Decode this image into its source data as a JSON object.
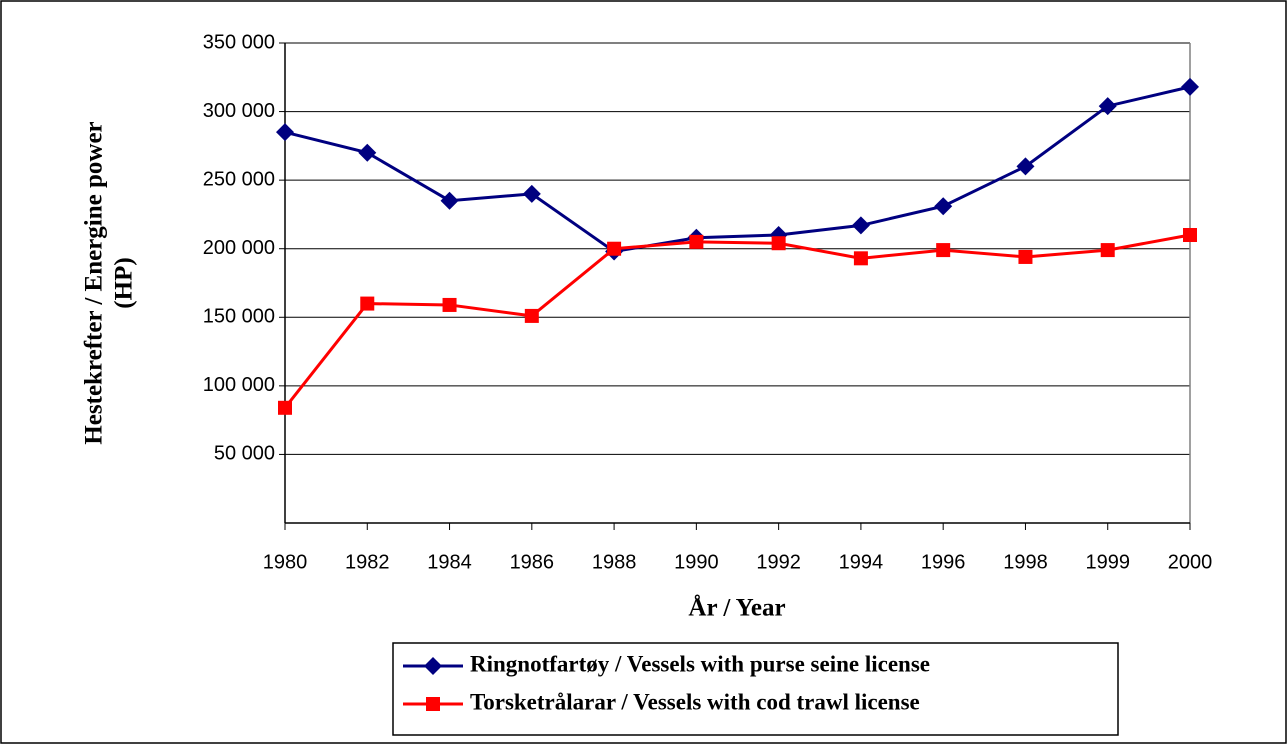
{
  "chart_data": {
    "type": "line",
    "xlabel": "År / Year",
    "ylabel": [
      "Hestekrefter / Energine power",
      "(HP)"
    ],
    "categories": [
      "1980",
      "1982",
      "1984",
      "1986",
      "1988",
      "1990",
      "1992",
      "1994",
      "1996",
      "1998",
      "1999",
      "2000"
    ],
    "series": [
      {
        "name": "Ringnotfartøy / Vessels with purse seine license",
        "color": "#000080",
        "marker": "diamond",
        "values": [
          285000,
          270000,
          235000,
          240000,
          198000,
          208000,
          210000,
          217000,
          231000,
          260000,
          304000,
          318000
        ]
      },
      {
        "name": "Torsketrålarar / Vessels with cod trawl license",
        "color": "#ff0000",
        "marker": "square",
        "values": [
          84000,
          160000,
          159000,
          151000,
          200000,
          205000,
          204000,
          193000,
          199000,
          194000,
          199000,
          210000
        ]
      }
    ],
    "ylim": [
      0,
      350000
    ],
    "yticks": [
      {
        "value": 50000,
        "label": "50 000"
      },
      {
        "value": 100000,
        "label": "100 000"
      },
      {
        "value": 150000,
        "label": "150 000"
      },
      {
        "value": 200000,
        "label": "200 000"
      },
      {
        "value": 250000,
        "label": "250 000"
      },
      {
        "value": 300000,
        "label": "300 000"
      },
      {
        "value": 350000,
        "label": "350 000"
      }
    ],
    "grid": true
  }
}
